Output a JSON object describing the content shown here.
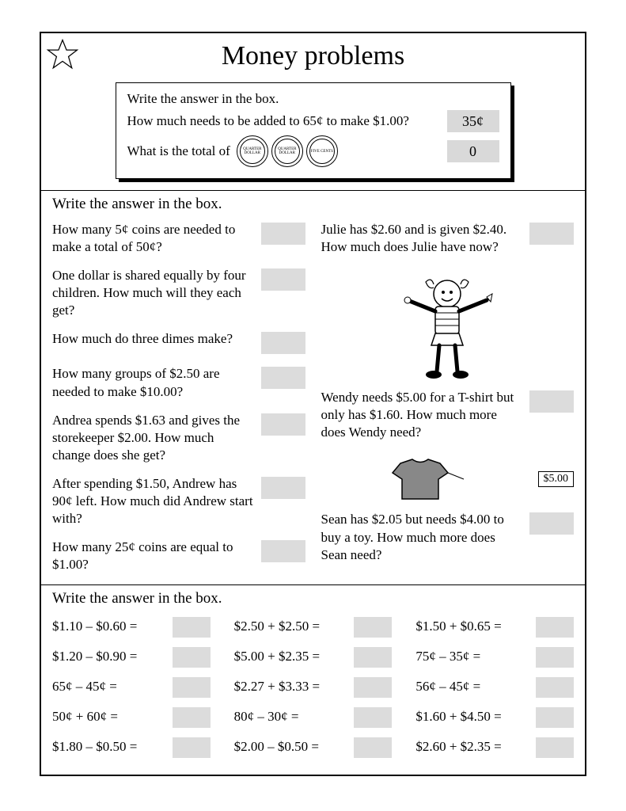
{
  "title": "Money problems",
  "example": {
    "instruction": "Write the answer in the box.",
    "q1": "How much needs to be added to 65¢ to make $1.00?",
    "a1": "35¢",
    "q2": "What is the total of",
    "a2": "0",
    "coins": [
      "QUARTER DOLLAR",
      "QUARTER DOLLAR",
      "FIVE CENTS"
    ]
  },
  "section2_head": "Write the answer in the box.",
  "left_problems": [
    "How many 5¢ coins are needed to make a total of 50¢?",
    "One dollar is shared equally by four children. How much will they each get?",
    "How much do three dimes make?",
    "How many groups of $2.50 are needed to make $10.00?",
    "Andrea spends $1.63 and gives the storekeeper $2.00. How much change does she get?",
    "After spending $1.50, Andrew has 90¢ left. How much did Andrew start with?",
    "How many 25¢ coins are equal to $1.00?"
  ],
  "right_problems": [
    "Julie has $2.60 and is given $2.40. How much does Julie have now?",
    "Wendy needs $5.00 for a T-shirt but only has $1.60. How much more does Wendy need?",
    "Sean has $2.05 but needs $4.00 to buy a toy. How much more does Sean need?"
  ],
  "tshirt_price": "$5.00",
  "section3_head": "Write the answer in the box.",
  "arithmetic": [
    "$1.10 – $0.60  =",
    "$2.50 + $2.50 =",
    "$1.50 + $0.65 =",
    "$1.20 – $0.90  =",
    "$5.00 + $2.35 =",
    "75¢   –   35¢   =",
    "65¢   –   45¢   =",
    "$2.27 + $3.33 =",
    "56¢   –   45¢   =",
    "50¢   +   60¢   =",
    "80¢   –   30¢   =",
    "$1.60 + $4.50 =",
    "$1.80 – $0.50  =",
    "$2.00 – $0.50 =",
    "$2.60 + $2.35 ="
  ],
  "colors": {
    "blank_bg": "#dcdcdc",
    "border": "#000000",
    "text": "#000000"
  }
}
